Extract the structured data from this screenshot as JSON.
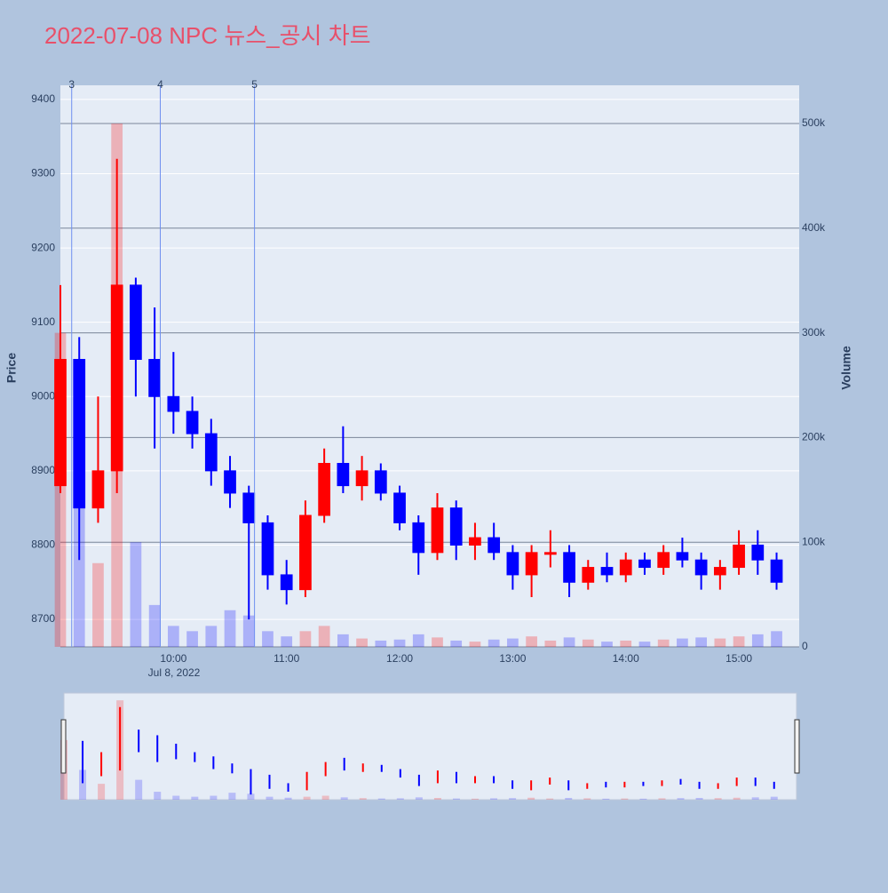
{
  "chart_data": {
    "type": "candlestick",
    "title": "2022-07-08 NPC 뉴스_공시 차트",
    "y_label": "Price",
    "y2_label": "Volume",
    "x_date_label": "Jul 8, 2022",
    "x": [
      "09:00",
      "09:10",
      "09:20",
      "09:30",
      "09:40",
      "09:50",
      "10:00",
      "10:10",
      "10:20",
      "10:30",
      "10:40",
      "10:50",
      "11:00",
      "11:10",
      "11:20",
      "11:30",
      "11:40",
      "11:50",
      "12:00",
      "12:10",
      "12:20",
      "12:30",
      "12:40",
      "12:50",
      "13:00",
      "13:10",
      "13:20",
      "13:30",
      "13:40",
      "13:50",
      "14:00",
      "14:10",
      "14:20",
      "14:30",
      "14:40",
      "14:50",
      "15:00",
      "15:10",
      "15:20"
    ],
    "open": [
      8880,
      9050,
      8850,
      8900,
      9150,
      9050,
      9000,
      8980,
      8950,
      8900,
      8870,
      8830,
      8760,
      8740,
      8840,
      8910,
      8880,
      8900,
      8870,
      8830,
      8790,
      8850,
      8800,
      8810,
      8790,
      8760,
      8790,
      8790,
      8750,
      8770,
      8760,
      8780,
      8770,
      8790,
      8780,
      8760,
      8770,
      8800,
      8780
    ],
    "high": [
      9150,
      9080,
      9000,
      9320,
      9160,
      9120,
      9060,
      9000,
      8970,
      8920,
      8880,
      8840,
      8780,
      8860,
      8930,
      8960,
      8920,
      8910,
      8880,
      8840,
      8870,
      8860,
      8830,
      8830,
      8800,
      8800,
      8820,
      8800,
      8780,
      8790,
      8790,
      8790,
      8800,
      8810,
      8790,
      8780,
      8820,
      8820,
      8790
    ],
    "low": [
      8870,
      8780,
      8830,
      8870,
      9000,
      8930,
      8950,
      8930,
      8880,
      8850,
      8700,
      8740,
      8720,
      8730,
      8830,
      8870,
      8860,
      8860,
      8820,
      8760,
      8780,
      8780,
      8780,
      8780,
      8740,
      8730,
      8770,
      8730,
      8740,
      8750,
      8750,
      8760,
      8760,
      8770,
      8740,
      8740,
      8760,
      8760,
      8740
    ],
    "close": [
      9050,
      8850,
      8900,
      9150,
      9050,
      9000,
      8980,
      8950,
      8900,
      8870,
      8830,
      8760,
      8740,
      8840,
      8910,
      8880,
      8900,
      8870,
      8830,
      8790,
      8850,
      8800,
      8810,
      8790,
      8760,
      8790,
      8790,
      8750,
      8770,
      8760,
      8780,
      8770,
      8790,
      8780,
      8760,
      8770,
      8800,
      8780,
      8750
    ],
    "volume": [
      300000,
      150000,
      80000,
      500000,
      100000,
      40000,
      20000,
      15000,
      20000,
      35000,
      30000,
      15000,
      10000,
      15000,
      20000,
      12000,
      8000,
      6000,
      7000,
      12000,
      9000,
      6000,
      5000,
      7000,
      8000,
      10000,
      6000,
      9000,
      7000,
      5000,
      6000,
      5000,
      7000,
      8000,
      9000,
      8000,
      10000,
      12000,
      15000
    ],
    "up_color": "#ff0000",
    "down_color": "#0000ff",
    "xlim": [
      "09:00",
      "15:32"
    ],
    "xticks": [
      "10:00",
      "11:00",
      "12:00",
      "13:00",
      "14:00",
      "15:00"
    ],
    "ylim": [
      8663,
      9419
    ],
    "yticks": [
      8700,
      8800,
      8900,
      9000,
      9100,
      9200,
      9300,
      9400
    ],
    "y2lim": [
      0,
      536500
    ],
    "y2ticks": [
      {
        "value": 0,
        "label": "0"
      },
      {
        "value": 100000,
        "label": "100k"
      },
      {
        "value": 200000,
        "label": "200k"
      },
      {
        "value": 300000,
        "label": "300k"
      },
      {
        "value": 400000,
        "label": "400k"
      },
      {
        "value": 500000,
        "label": "500k"
      }
    ],
    "events": [
      {
        "label": "3",
        "x": "09:06"
      },
      {
        "label": "4",
        "x": "09:53"
      },
      {
        "label": "5",
        "x": "10:43"
      }
    ],
    "grid": true,
    "range_slider": true
  }
}
